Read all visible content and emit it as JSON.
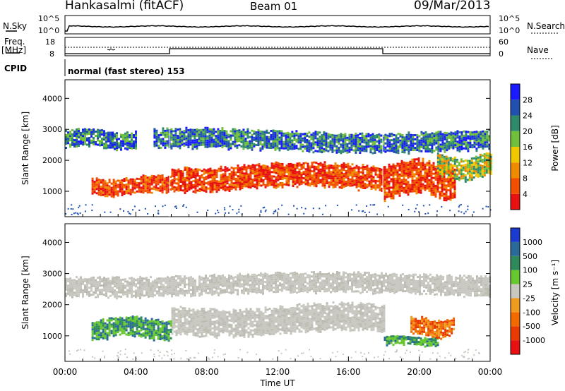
{
  "header": {
    "station": "Hankasalmi (fitACF)",
    "beam": "Beam 01",
    "date": "09/Mar/2013"
  },
  "strip_labels": {
    "nsky": "N.Sky",
    "nsearch": "N.Search",
    "freq": "Freq.",
    "mhz": "[MHz]",
    "nave": "Nave",
    "cpid": "CPID",
    "cpid_text": "normal (fast stereo) 153",
    "nsky_ticks": [
      "10^5",
      "10^0"
    ],
    "nsearch_ticks": [
      "10^5",
      "10^0"
    ],
    "freq_ticks": [
      "18",
      "8"
    ],
    "nave_ticks": [
      "60",
      "0"
    ]
  },
  "chart_data": [
    {
      "type": "heatmap",
      "panel": "power",
      "ylabel": "Slant Range [km]",
      "yticks": [
        1000,
        2000,
        3000,
        4000
      ],
      "ylim": [
        180,
        4600
      ],
      "xlim": [
        0,
        24
      ],
      "colorbar_label": "Power [dB]",
      "colorbar_ticks": [
        "4",
        "8",
        "12",
        "16",
        "20",
        "24",
        "28"
      ],
      "colorbar_colors": [
        "#1a1aff",
        "#2050b0",
        "#2e8a6a",
        "#6fbf3a",
        "#f0c800",
        "#f08a00",
        "#f05000",
        "#e81010"
      ],
      "regions": [
        {
          "t0": 1.5,
          "t1": 6.0,
          "r0": 900,
          "r1": 1500,
          "level": "high"
        },
        {
          "t0": 6.0,
          "t1": 18.0,
          "r0": 1050,
          "r1": 1900,
          "level": "high"
        },
        {
          "t0": 18.0,
          "t1": 22.0,
          "r0": 800,
          "r1": 2000,
          "level": "high"
        },
        {
          "t0": 0.0,
          "t1": 4.0,
          "r0": 2400,
          "r1": 3000,
          "level": "low"
        },
        {
          "t0": 5.0,
          "t1": 24.0,
          "r0": 2300,
          "r1": 3000,
          "level": "low"
        },
        {
          "t0": 21.0,
          "t1": 24.0,
          "r0": 1400,
          "r1": 2200,
          "level": "mid"
        }
      ]
    },
    {
      "type": "heatmap",
      "panel": "velocity",
      "ylabel": "Slant Range [km]",
      "xlabel": "Time UT",
      "yticks": [
        1000,
        2000,
        3000,
        4000
      ],
      "ylim": [
        180,
        4600
      ],
      "xlim": [
        0,
        24
      ],
      "xticks": [
        "00:00",
        "04:00",
        "08:00",
        "12:00",
        "16:00",
        "20:00",
        "00:00"
      ],
      "colorbar_label": "Velocity [m s⁻¹]",
      "colorbar_ticks": [
        "1000",
        "500",
        "100",
        "25",
        "-25",
        "-100",
        "-500",
        "-1000"
      ],
      "colorbar_colors": [
        "#1a3ad0",
        "#2a6a9a",
        "#2e8a5a",
        "#66c82e",
        "#c8c8c0",
        "#f09a20",
        "#f06a00",
        "#e83a00",
        "#e81010"
      ],
      "regions": [
        {
          "t0": 6.0,
          "t1": 18.0,
          "r0": 1050,
          "r1": 2000,
          "level": "zero"
        },
        {
          "t0": 0.0,
          "t1": 24.0,
          "r0": 2300,
          "r1": 3000,
          "level": "zero"
        },
        {
          "t0": 1.5,
          "t1": 6.0,
          "r0": 900,
          "r1": 1600,
          "level": "toward"
        },
        {
          "t0": 18.0,
          "t1": 21.0,
          "r0": 700,
          "r1": 1000,
          "level": "toward"
        },
        {
          "t0": 19.5,
          "t1": 22.0,
          "r0": 1000,
          "r1": 1600,
          "level": "away"
        }
      ]
    }
  ]
}
